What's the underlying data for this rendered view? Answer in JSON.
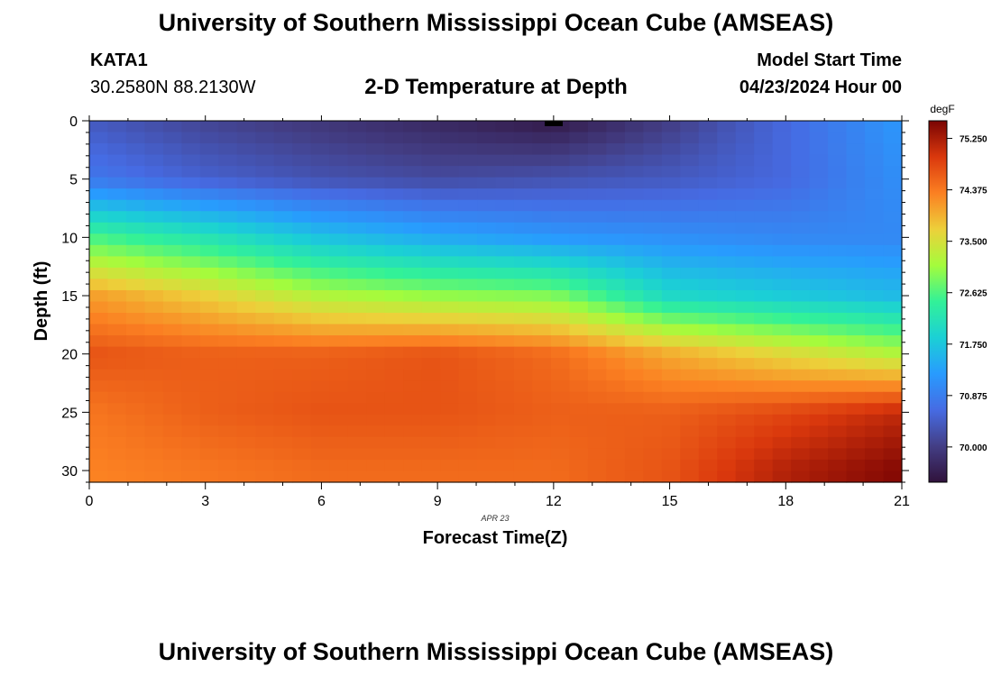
{
  "header": {
    "title": "University of Southern Mississippi Ocean Cube (AMSEAS)",
    "station": "KATA1",
    "coordinates": "30.2580N  88.2130W",
    "subtitle": "2-D Temperature at Depth",
    "model_start_label": "Model Start Time",
    "model_start_value": "04/23/2024 Hour 00"
  },
  "footer": {
    "title": "University of Southern Mississippi Ocean Cube (AMSEAS)"
  },
  "chart_data": {
    "type": "heatmap",
    "title": "2-D Temperature at Depth",
    "xlabel": "Forecast Time(Z)",
    "ylabel": "Depth (ft)",
    "date_label": "APR 23",
    "xlim": [
      0,
      21
    ],
    "ylim": [
      0,
      31
    ],
    "x_ticks": [
      0,
      3,
      6,
      9,
      12,
      15,
      18,
      21
    ],
    "x_tick_labels": [
      "0",
      "3",
      "6",
      "9",
      "12",
      "15",
      "18",
      "21"
    ],
    "y_ticks": [
      0,
      5,
      10,
      15,
      20,
      25,
      30
    ],
    "y_tick_labels": [
      "0",
      "5",
      "10",
      "15",
      "20",
      "25",
      "30"
    ],
    "colorbar": {
      "unit": "degF",
      "min": 69.4,
      "max": 75.55,
      "tick_values": [
        75.25,
        74.375,
        73.5,
        72.625,
        71.75,
        70.875,
        70.0
      ],
      "tick_labels": [
        "75.250",
        "74.375",
        "73.500",
        "72.625",
        "71.750",
        "70.875",
        "70.000"
      ]
    },
    "time_columns": [
      0,
      3,
      6,
      9,
      12,
      15,
      18,
      21
    ],
    "depths_ft": [
      0,
      5,
      10,
      15,
      20,
      25,
      30
    ],
    "temperature_degF": [
      [
        70.4,
        70.1,
        69.9,
        69.7,
        69.5,
        70.0,
        70.6,
        71.2
      ],
      [
        70.8,
        70.5,
        70.3,
        70.2,
        70.3,
        70.4,
        70.6,
        71.1
      ],
      [
        72.6,
        72.2,
        71.7,
        71.4,
        71.2,
        71.1,
        71.0,
        71.0
      ],
      [
        74.1,
        73.7,
        73.2,
        73.0,
        72.9,
        72.0,
        71.8,
        71.6
      ],
      [
        74.7,
        74.6,
        74.6,
        74.7,
        74.5,
        74.0,
        73.6,
        73.2
      ],
      [
        74.4,
        74.6,
        74.7,
        74.7,
        74.6,
        74.6,
        74.8,
        75.1
      ],
      [
        74.3,
        74.4,
        74.5,
        74.5,
        74.5,
        74.7,
        75.2,
        75.5
      ]
    ]
  }
}
